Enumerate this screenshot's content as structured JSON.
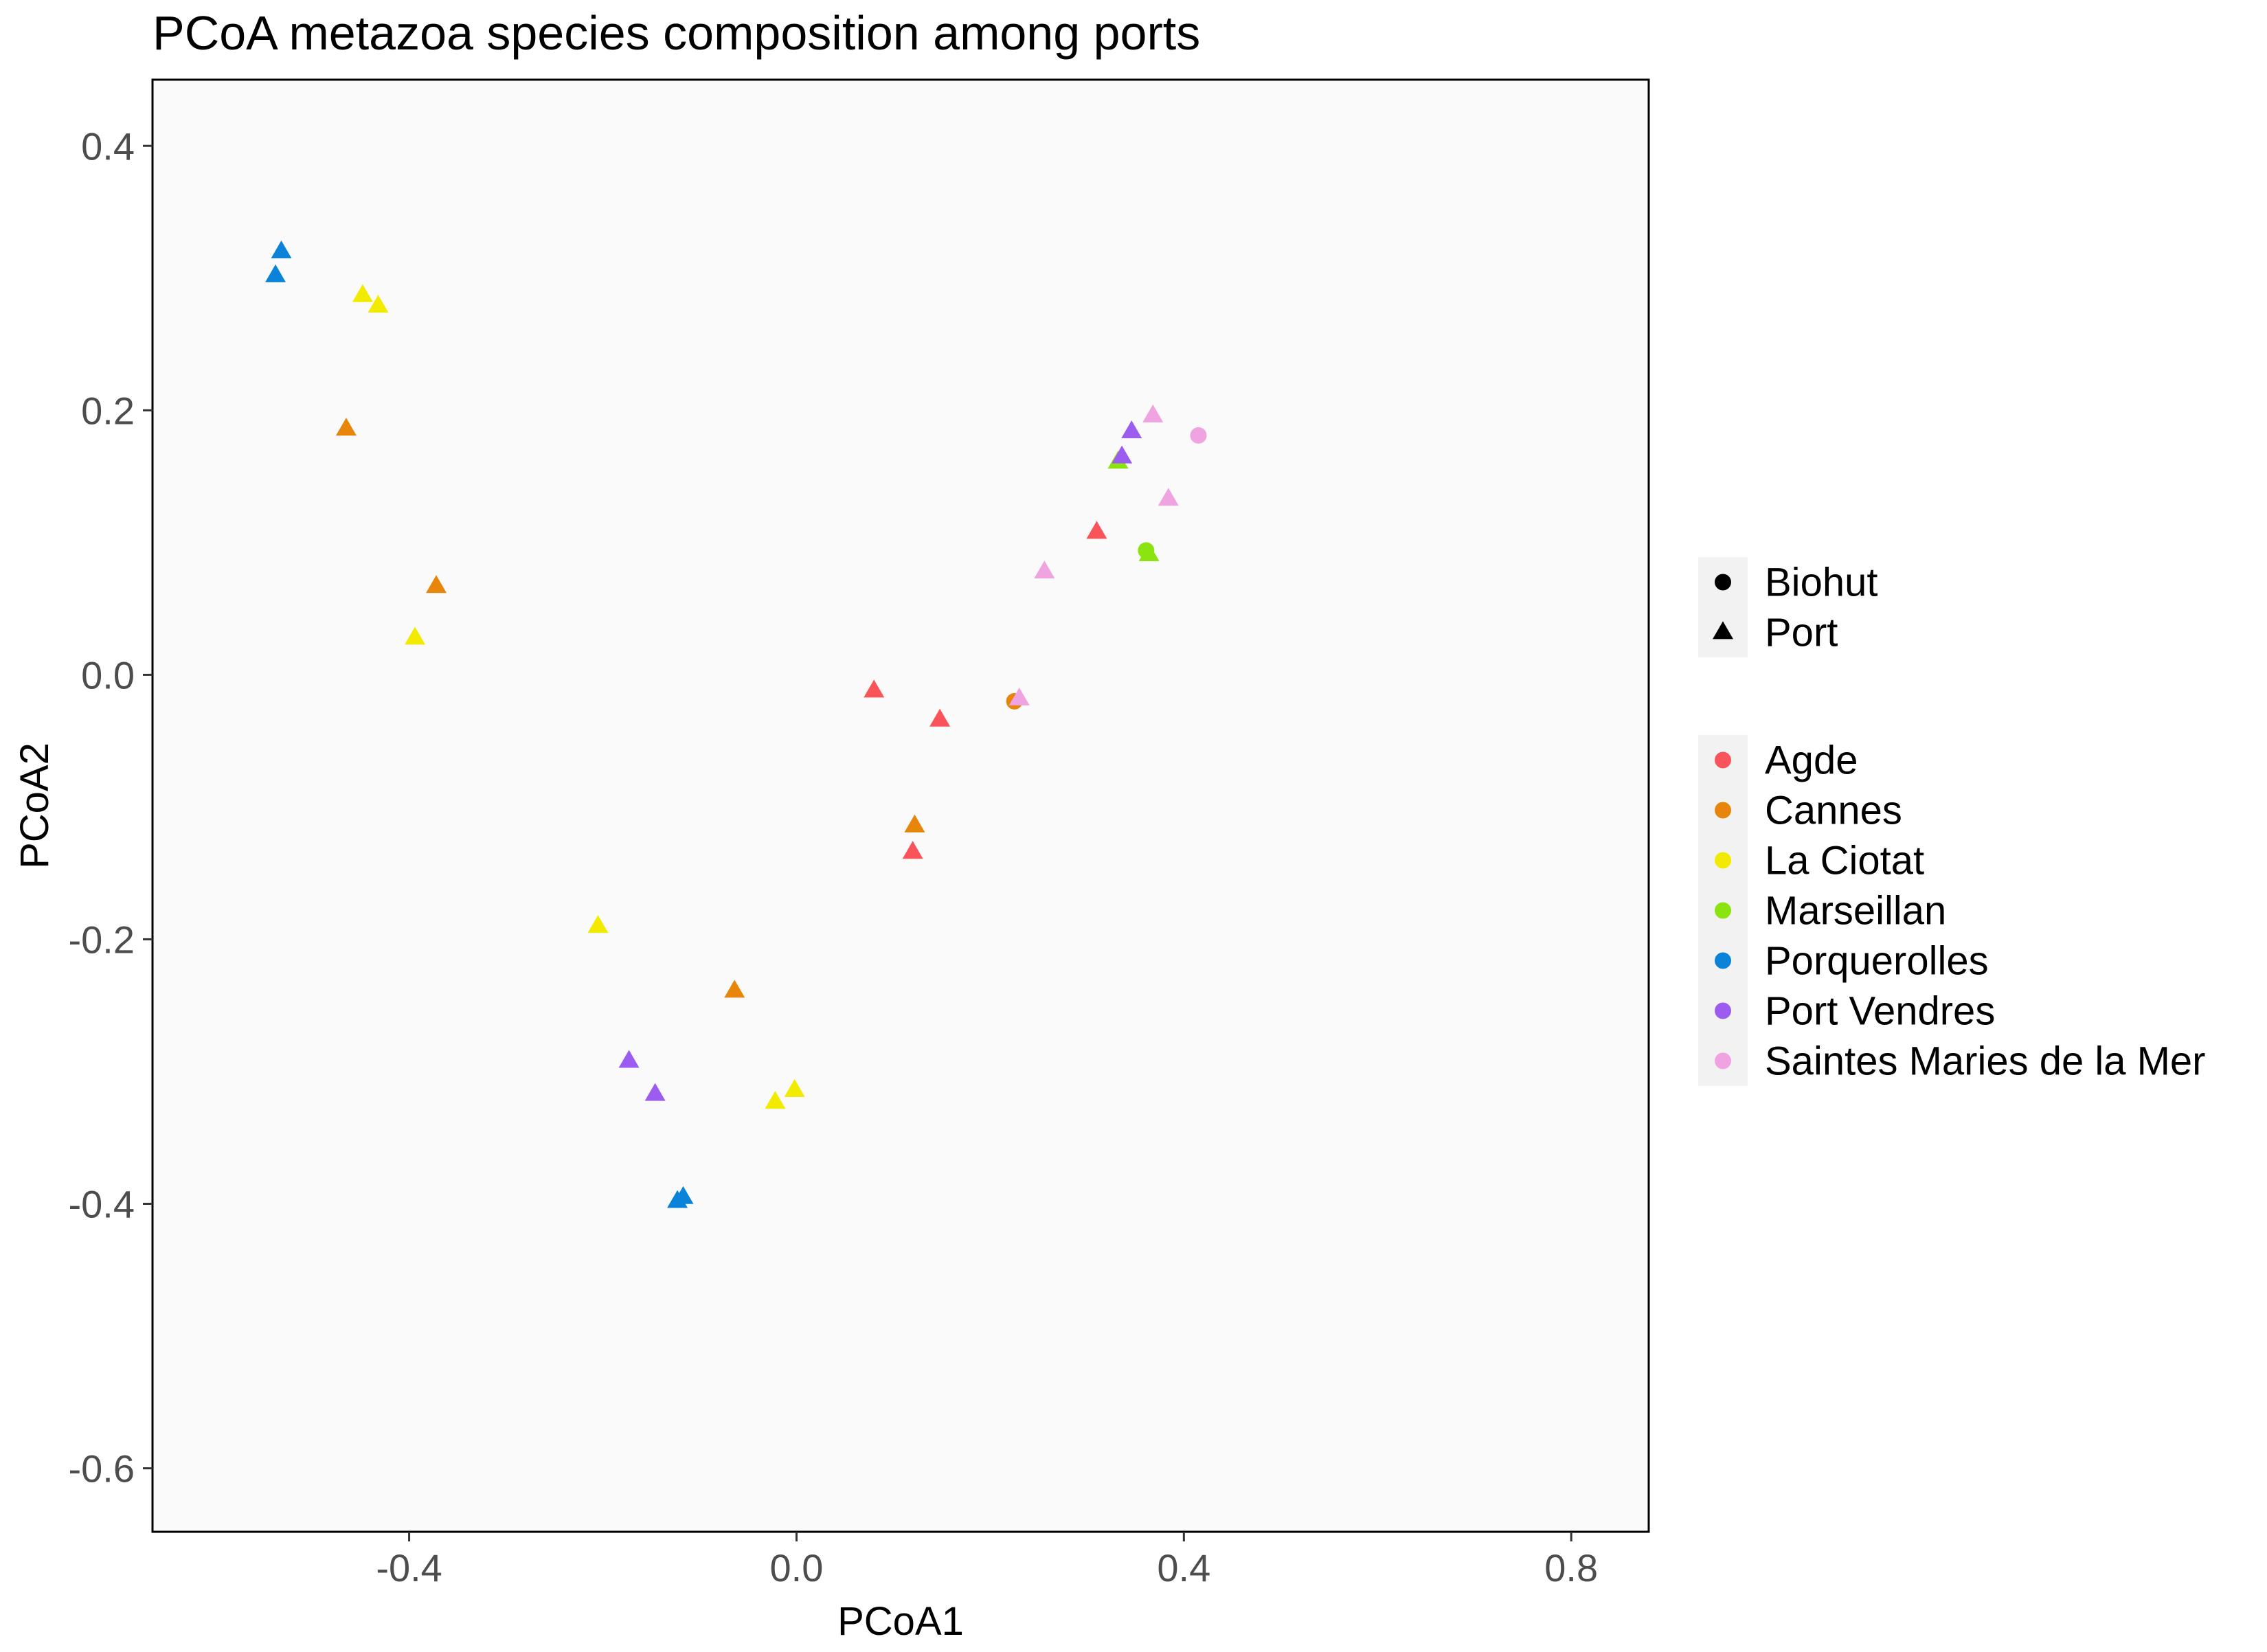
{
  "chart_data": {
    "type": "scatter",
    "title": "PCoA metazoa species composition among ports",
    "xlabel": "PCoA1",
    "ylabel": "PCoA2",
    "xlim": [
      -0.665,
      0.88
    ],
    "ylim": [
      -0.648,
      0.45
    ],
    "x_ticks": [
      -0.4,
      0.0,
      0.4,
      0.8
    ],
    "y_ticks": [
      0.4,
      0.2,
      0.0,
      -0.2,
      -0.4,
      -0.6
    ],
    "x_tick_labels": [
      "-0.4",
      "0.0",
      "0.4",
      "0.8"
    ],
    "y_tick_labels": [
      "0.4",
      "0.2",
      "0.0",
      "-0.2",
      "-0.4",
      "-0.6"
    ],
    "grid": false,
    "panel_background": "#fafafa",
    "legend_position": "right",
    "shape_legend": {
      "items": [
        {
          "label": "Biohut",
          "shape": "circle"
        },
        {
          "label": "Port",
          "shape": "triangle"
        }
      ]
    },
    "color_legend": {
      "items": [
        {
          "label": "Agde",
          "color": "#f8545a"
        },
        {
          "label": "Cannes",
          "color": "#e7860b"
        },
        {
          "label": "La Ciotat",
          "color": "#f2eb00"
        },
        {
          "label": "Marseillan",
          "color": "#8be30f"
        },
        {
          "label": "Porquerolles",
          "color": "#0b83d8"
        },
        {
          "label": "Port Vendres",
          "color": "#9c5cf0"
        },
        {
          "label": "Saintes Maries de la Mer",
          "color": "#f0a3e1"
        }
      ]
    },
    "series": [
      {
        "name": "Agde",
        "color": "#f8545a",
        "points": [
          {
            "x": 0.08,
            "y": -0.012,
            "shape": "triangle"
          },
          {
            "x": 0.148,
            "y": -0.034,
            "shape": "triangle"
          },
          {
            "x": 0.12,
            "y": -0.134,
            "shape": "triangle"
          },
          {
            "x": 0.31,
            "y": 0.108,
            "shape": "triangle"
          }
        ]
      },
      {
        "name": "Cannes",
        "color": "#e7860b",
        "points": [
          {
            "x": -0.465,
            "y": 0.186,
            "shape": "triangle"
          },
          {
            "x": -0.372,
            "y": 0.067,
            "shape": "triangle"
          },
          {
            "x": 0.122,
            "y": -0.114,
            "shape": "triangle"
          },
          {
            "x": -0.064,
            "y": -0.239,
            "shape": "triangle"
          },
          {
            "x": 0.225,
            "y": -0.02,
            "shape": "circle"
          }
        ]
      },
      {
        "name": "La Ciotat",
        "color": "#f2eb00",
        "points": [
          {
            "x": -0.448,
            "y": 0.287,
            "shape": "triangle"
          },
          {
            "x": -0.432,
            "y": 0.279,
            "shape": "triangle"
          },
          {
            "x": -0.394,
            "y": 0.028,
            "shape": "triangle"
          },
          {
            "x": -0.205,
            "y": -0.19,
            "shape": "triangle"
          },
          {
            "x": -0.022,
            "y": -0.323,
            "shape": "triangle"
          },
          {
            "x": -0.002,
            "y": -0.314,
            "shape": "triangle"
          }
        ]
      },
      {
        "name": "Marseillan",
        "color": "#8be30f",
        "points": [
          {
            "x": 0.332,
            "y": 0.161,
            "shape": "triangle"
          },
          {
            "x": 0.364,
            "y": 0.091,
            "shape": "triangle"
          },
          {
            "x": 0.361,
            "y": 0.094,
            "shape": "circle"
          }
        ]
      },
      {
        "name": "Porquerolles",
        "color": "#0b83d8",
        "points": [
          {
            "x": -0.532,
            "y": 0.32,
            "shape": "triangle"
          },
          {
            "x": -0.538,
            "y": 0.302,
            "shape": "triangle"
          },
          {
            "x": -0.117,
            "y": -0.395,
            "shape": "triangle"
          },
          {
            "x": -0.123,
            "y": -0.398,
            "shape": "triangle"
          }
        ]
      },
      {
        "name": "Port Vendres",
        "color": "#9c5cf0",
        "points": [
          {
            "x": -0.173,
            "y": -0.292,
            "shape": "triangle"
          },
          {
            "x": -0.146,
            "y": -0.317,
            "shape": "triangle"
          },
          {
            "x": 0.336,
            "y": 0.165,
            "shape": "triangle"
          },
          {
            "x": 0.346,
            "y": 0.184,
            "shape": "triangle"
          }
        ]
      },
      {
        "name": "Saintes Maries de la Mer",
        "color": "#f0a3e1",
        "points": [
          {
            "x": 0.256,
            "y": 0.078,
            "shape": "triangle"
          },
          {
            "x": 0.23,
            "y": -0.018,
            "shape": "triangle"
          },
          {
            "x": 0.368,
            "y": 0.196,
            "shape": "triangle"
          },
          {
            "x": 0.384,
            "y": 0.133,
            "shape": "triangle"
          },
          {
            "x": 0.415,
            "y": 0.181,
            "shape": "circle"
          }
        ]
      }
    ]
  }
}
